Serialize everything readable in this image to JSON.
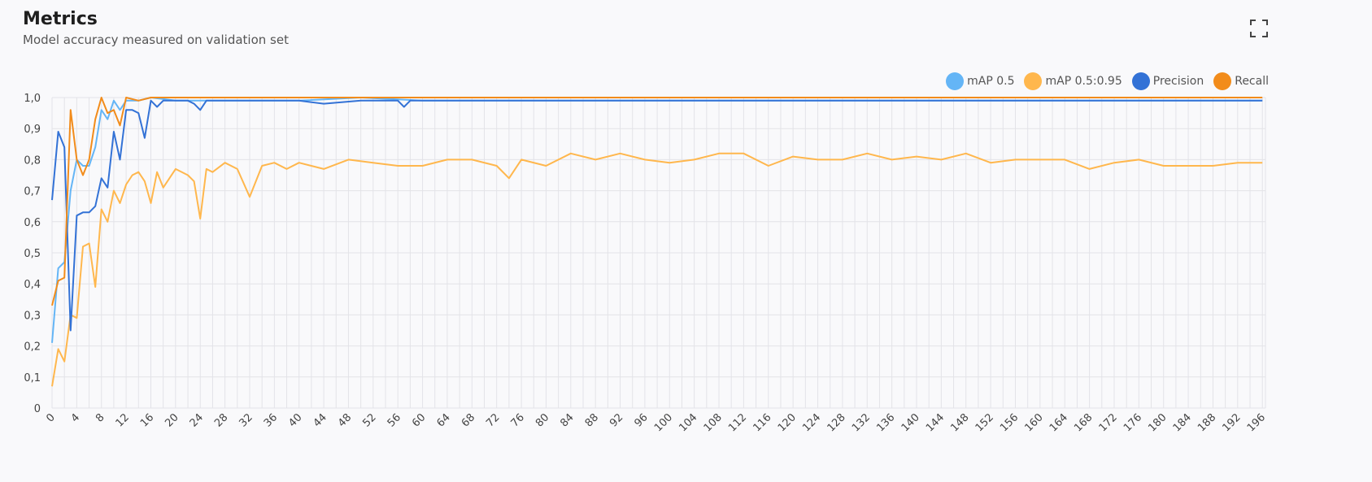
{
  "header": {
    "title": "Metrics",
    "subtitle": "Model accuracy measured on validation set",
    "expand_icon": "fullscreen-icon"
  },
  "chart_data": {
    "type": "line",
    "title": "Metrics",
    "subtitle": "Model accuracy measured on validation set",
    "xlabel": "",
    "ylabel": "",
    "xlim": [
      0,
      196
    ],
    "ylim": [
      0,
      1.0
    ],
    "grid": true,
    "legend_position": "top-right",
    "y_ticks": [
      "0",
      "0,1",
      "0,2",
      "0,3",
      "0,4",
      "0,5",
      "0,6",
      "0,7",
      "0,8",
      "0,9",
      "1,0"
    ],
    "x_ticks": [
      "0",
      "4",
      "8",
      "12",
      "16",
      "20",
      "24",
      "28",
      "32",
      "36",
      "40",
      "44",
      "48",
      "52",
      "56",
      "60",
      "64",
      "68",
      "72",
      "76",
      "80",
      "84",
      "88",
      "92",
      "96",
      "100",
      "104",
      "108",
      "112",
      "116",
      "120",
      "124",
      "128",
      "132",
      "136",
      "140",
      "144",
      "148",
      "152",
      "156",
      "160",
      "164",
      "168",
      "172",
      "176",
      "180",
      "184",
      "188",
      "192",
      "196"
    ],
    "series": [
      {
        "name": "mAP 0.5",
        "color": "#64b5f6",
        "x": [
          0,
          1,
          2,
          3,
          4,
          5,
          6,
          7,
          8,
          9,
          10,
          11,
          12,
          14,
          16,
          20,
          24,
          30,
          40,
          50,
          60,
          80,
          100,
          120,
          140,
          160,
          180,
          196
        ],
        "y": [
          0.21,
          0.45,
          0.47,
          0.7,
          0.8,
          0.78,
          0.78,
          0.84,
          0.96,
          0.93,
          0.99,
          0.96,
          0.99,
          0.99,
          1.0,
          0.99,
          0.99,
          0.99,
          0.99,
          1.0,
          0.99,
          0.99,
          0.99,
          0.99,
          0.99,
          0.99,
          0.99,
          0.99
        ]
      },
      {
        "name": "mAP 0.5:0.95",
        "color": "#ffb74d",
        "x": [
          0,
          1,
          2,
          3,
          4,
          5,
          6,
          7,
          8,
          9,
          10,
          11,
          12,
          13,
          14,
          15,
          16,
          17,
          18,
          20,
          22,
          23,
          24,
          25,
          26,
          28,
          30,
          32,
          34,
          36,
          38,
          40,
          44,
          48,
          52,
          56,
          60,
          64,
          68,
          72,
          74,
          76,
          80,
          84,
          88,
          92,
          96,
          100,
          104,
          108,
          112,
          116,
          120,
          124,
          128,
          132,
          136,
          140,
          144,
          148,
          152,
          156,
          160,
          164,
          168,
          172,
          176,
          180,
          184,
          188,
          192,
          196
        ],
        "y": [
          0.07,
          0.19,
          0.15,
          0.3,
          0.29,
          0.52,
          0.53,
          0.39,
          0.64,
          0.6,
          0.7,
          0.66,
          0.72,
          0.75,
          0.76,
          0.73,
          0.66,
          0.76,
          0.71,
          0.77,
          0.75,
          0.73,
          0.61,
          0.77,
          0.76,
          0.79,
          0.77,
          0.68,
          0.78,
          0.79,
          0.77,
          0.79,
          0.77,
          0.8,
          0.79,
          0.78,
          0.78,
          0.8,
          0.8,
          0.78,
          0.74,
          0.8,
          0.78,
          0.82,
          0.8,
          0.82,
          0.8,
          0.79,
          0.8,
          0.82,
          0.82,
          0.78,
          0.81,
          0.8,
          0.8,
          0.82,
          0.8,
          0.81,
          0.8,
          0.82,
          0.79,
          0.8,
          0.8,
          0.8,
          0.77,
          0.79,
          0.8,
          0.78,
          0.78,
          0.78,
          0.79,
          0.79
        ]
      },
      {
        "name": "Precision",
        "color": "#3372d6",
        "x": [
          0,
          1,
          2,
          3,
          4,
          5,
          6,
          7,
          8,
          9,
          10,
          11,
          12,
          13,
          14,
          15,
          16,
          17,
          18,
          20,
          22,
          23,
          24,
          25,
          26,
          30,
          40,
          44,
          50,
          56,
          57,
          58,
          60,
          70,
          80,
          100,
          120,
          140,
          160,
          176,
          180,
          196
        ],
        "y": [
          0.67,
          0.89,
          0.84,
          0.25,
          0.62,
          0.63,
          0.63,
          0.65,
          0.74,
          0.71,
          0.89,
          0.8,
          0.96,
          0.96,
          0.95,
          0.87,
          0.99,
          0.97,
          0.99,
          0.99,
          0.99,
          0.98,
          0.96,
          0.99,
          0.99,
          0.99,
          0.99,
          0.98,
          0.99,
          0.99,
          0.97,
          0.99,
          0.99,
          0.99,
          0.99,
          0.99,
          0.99,
          0.99,
          0.99,
          0.99,
          0.99,
          0.99
        ]
      },
      {
        "name": "Recall",
        "color": "#f28c1b",
        "x": [
          0,
          1,
          2,
          3,
          4,
          5,
          6,
          7,
          8,
          9,
          10,
          11,
          12,
          14,
          16,
          20,
          30,
          40,
          60,
          80,
          100,
          120,
          140,
          160,
          180,
          196
        ],
        "y": [
          0.33,
          0.41,
          0.42,
          0.96,
          0.8,
          0.75,
          0.8,
          0.93,
          1.0,
          0.95,
          0.96,
          0.91,
          1.0,
          0.99,
          1.0,
          1.0,
          1.0,
          1.0,
          1.0,
          1.0,
          1.0,
          1.0,
          1.0,
          1.0,
          1.0,
          1.0
        ]
      }
    ]
  }
}
